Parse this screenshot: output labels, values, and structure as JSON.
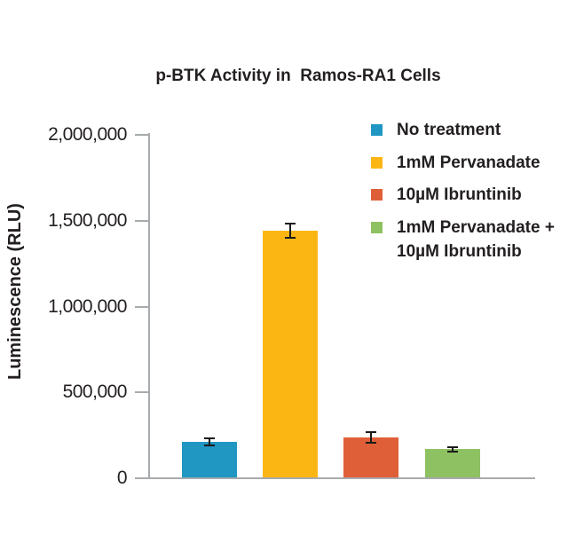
{
  "title": "p-BTK Activity in  Ramos-RA1 Cells",
  "y_axis": {
    "label": "Luminescence (RLU)",
    "tick_labels_top_to_bottom": [
      "2,000,000",
      "1,500,000",
      "1,000,000",
      "500,000",
      "0"
    ]
  },
  "legend": {
    "position": "right",
    "items": [
      {
        "label": "No treatment",
        "color": "#2096c2"
      },
      {
        "label": "1mM Pervanadate",
        "color": "#fcb614"
      },
      {
        "label": "10µM Ibruntinib",
        "color": "#df6038"
      },
      {
        "label": "1mM Pervanadate +\n10µM Ibruntinib",
        "color": "#8ec161"
      }
    ]
  },
  "colors": {
    "text": "#231f20",
    "axis": "#a8abad",
    "error_bar": "#1b1b1b",
    "background": "#ffffff"
  },
  "chart_data": {
    "type": "bar",
    "title": "p-BTK Activity in  Ramos-RA1 Cells",
    "xlabel": "",
    "ylabel": "Luminescence (RLU)",
    "categories": [
      "No treatment",
      "1mM Pervanadate",
      "10µM Ibruntinib",
      "1mM Pervanadate + 10µM Ibruntinib"
    ],
    "values": [
      212000,
      1440000,
      238000,
      168000
    ],
    "error_bars": [
      20000,
      42000,
      30000,
      12000
    ],
    "bar_colors": [
      "#2096c2",
      "#fcb614",
      "#df6038",
      "#8ec161"
    ],
    "ylim": [
      0,
      2000000
    ],
    "yticks": [
      0,
      500000,
      1000000,
      1500000,
      2000000
    ],
    "ytick_labels": [
      "0",
      "500,000",
      "1,000,000",
      "1,500,000",
      "2,000,000"
    ],
    "grid": false,
    "x_tick_labels_shown": false,
    "legend_position": "right",
    "units": "RLU"
  }
}
